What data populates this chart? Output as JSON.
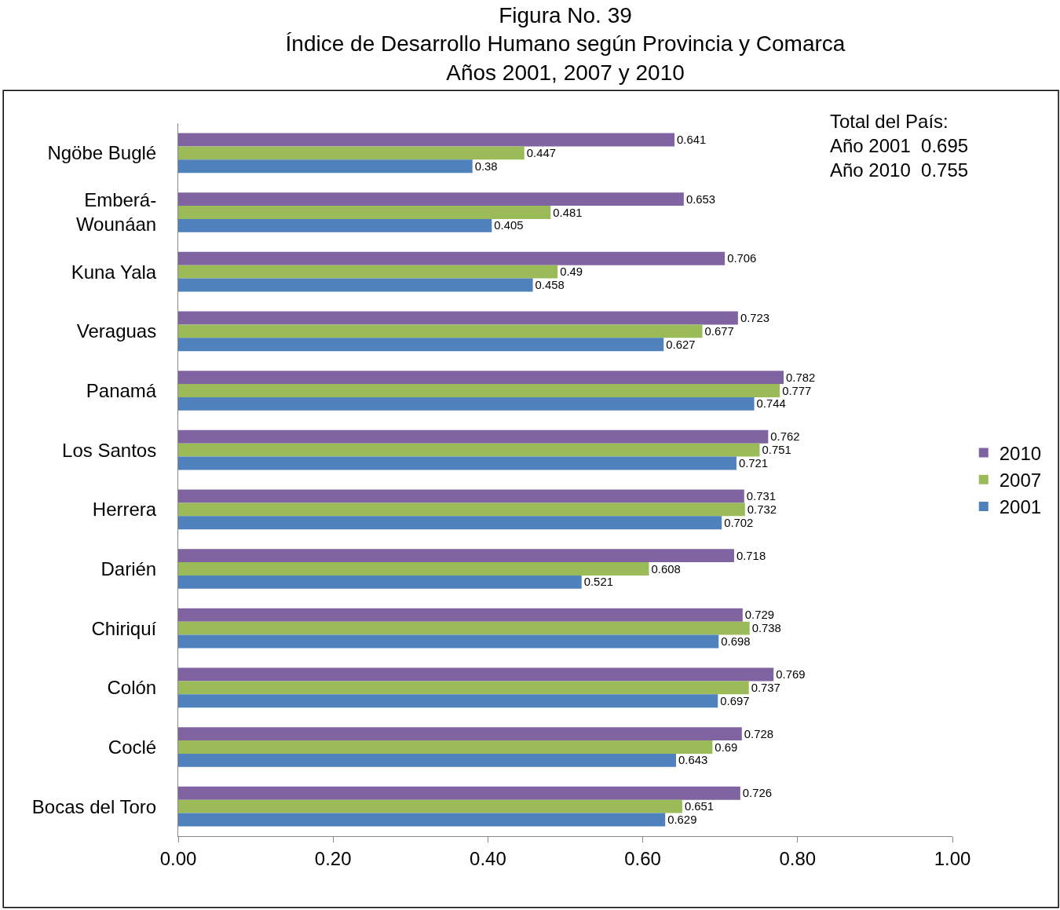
{
  "chart_data": {
    "type": "bar",
    "orientation": "horizontal",
    "title": "Figura No. 39\nÍndice de Desarrollo Humano según Provincia y Comarca\nAños 2001, 2007 y 2010",
    "categories": [
      "Ngöbe Buglé",
      "Emberá-Wounáan",
      "Kuna Yala",
      "Veraguas",
      "Panamá",
      "Los Santos",
      "Herrera",
      "Darién",
      "Chiriquí",
      "Colón",
      "Coclé",
      "Bocas del Toro"
    ],
    "series": [
      {
        "name": "2010",
        "color": "#8064a2",
        "values": [
          0.641,
          0.653,
          0.706,
          0.723,
          0.782,
          0.762,
          0.731,
          0.718,
          0.729,
          0.769,
          0.728,
          0.726
        ]
      },
      {
        "name": "2007",
        "color": "#9bbb59",
        "values": [
          0.447,
          0.481,
          0.49,
          0.677,
          0.777,
          0.751,
          0.732,
          0.608,
          0.738,
          0.737,
          0.69,
          0.651
        ]
      },
      {
        "name": "2001",
        "color": "#4f81bd",
        "values": [
          0.38,
          0.405,
          0.458,
          0.627,
          0.744,
          0.721,
          0.702,
          0.521,
          0.698,
          0.697,
          0.643,
          0.629
        ]
      }
    ],
    "xlim": [
      0,
      1
    ],
    "xticks": [
      {
        "value": 0,
        "label": "0.00"
      },
      {
        "value": 0.2,
        "label": "0.20"
      },
      {
        "value": 0.4,
        "label": "0.40"
      },
      {
        "value": 0.6,
        "label": "0.60"
      },
      {
        "value": 0.8,
        "label": "0.80"
      },
      {
        "value": 1,
        "label": "1.00"
      }
    ],
    "data_labels": true,
    "grid": false,
    "legend": "right",
    "annotations": [
      "Total del País:\nAño 2001  0.695\nAño 2010  0.755"
    ]
  }
}
